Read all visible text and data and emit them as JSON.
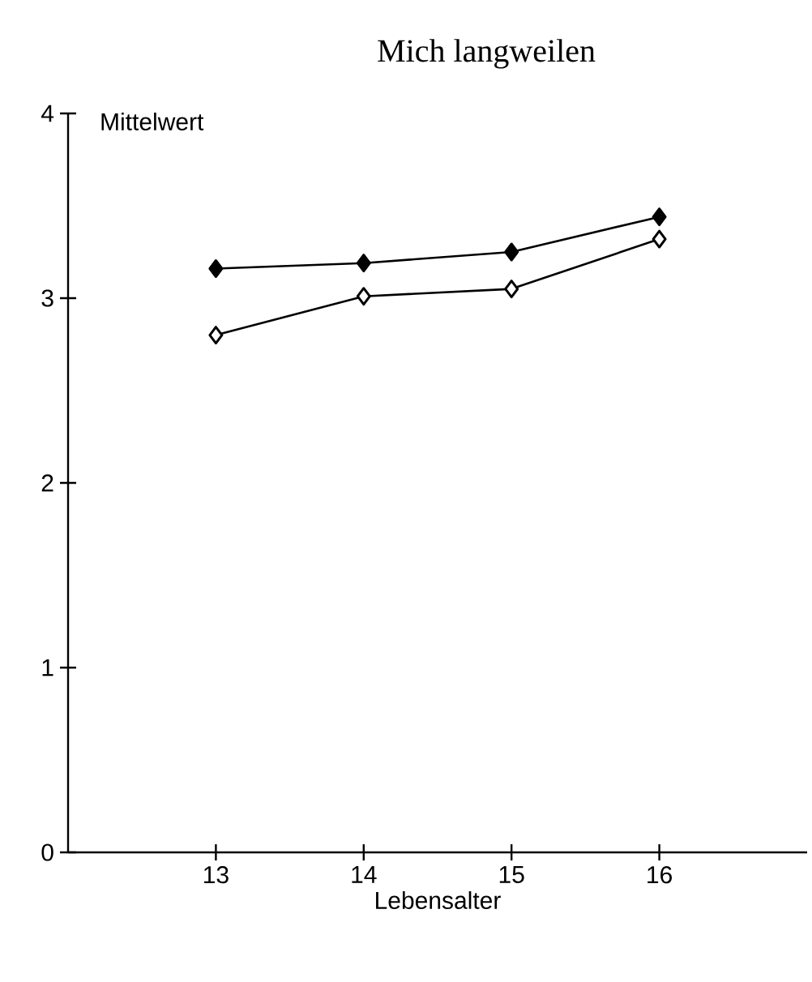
{
  "chart_data": {
    "type": "line",
    "title": "Mich langweilen",
    "xlabel": "Lebensalter",
    "ylabel": "Mittelwert",
    "x": [
      13,
      14,
      15,
      16
    ],
    "series": [
      {
        "color": "#000000",
        "values": [
          3.16,
          3.19,
          3.25,
          3.44
        ]
      },
      {
        "color": "#000000",
        "values": [
          2.8,
          3.01,
          3.05,
          3.32
        ]
      }
    ],
    "xlim": [
      12,
      17
    ],
    "xticks": [
      13,
      14,
      15,
      16
    ],
    "ylim": [
      0,
      4
    ],
    "yticks": [
      0,
      1,
      2,
      3,
      4
    ],
    "marker": "diamond",
    "line_style": "solid"
  }
}
